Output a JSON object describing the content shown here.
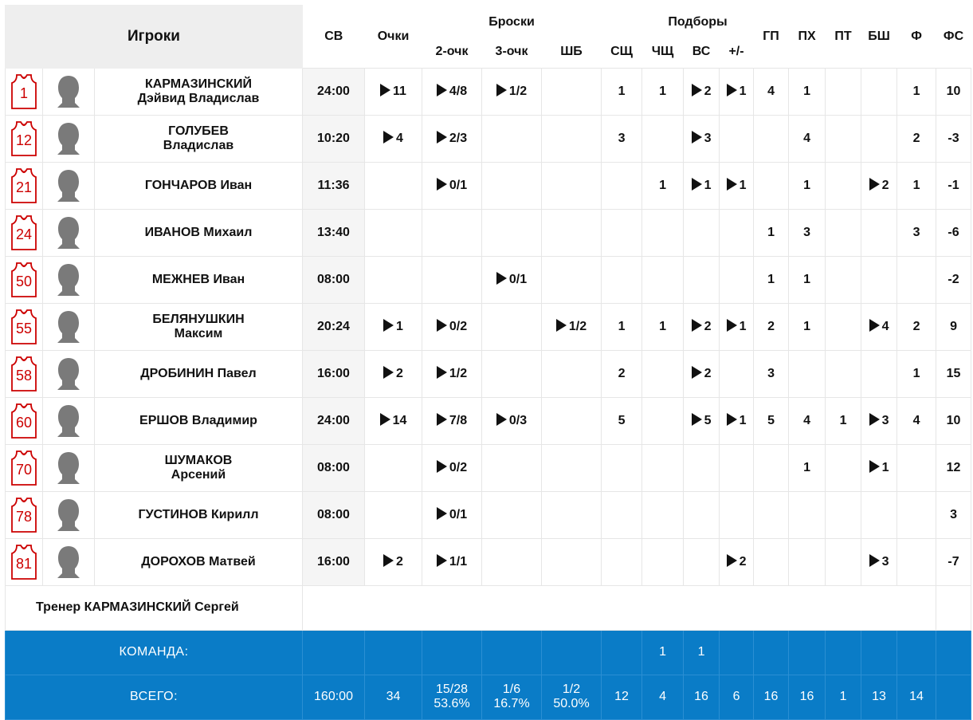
{
  "header": {
    "players": "Игроки",
    "sv": "СВ",
    "points": "Очки",
    "shots_group": "Броски",
    "two": "2-очк",
    "three": "3-очк",
    "ft": "ШБ",
    "reb_group": "Подборы",
    "oreb": "СЩ",
    "dreb": "ЧЩ",
    "treb": "ВС",
    "ast": "ГП",
    "stl": "ПХ",
    "tov": "ПТ",
    "blk": "БШ",
    "pf": "Ф",
    "fd": "ФС",
    "pm": "+/-"
  },
  "players": [
    {
      "number": "1",
      "name1": "КАРМАЗИНСКИЙ",
      "name2": "Дэйвид Владислав",
      "two_line": true,
      "sv": "24:00",
      "pts": "11",
      "two": "4/8",
      "three": "1/2",
      "ft": "",
      "oreb": "1",
      "dreb": "1",
      "treb": "2",
      "ast": "1",
      "stl": "4",
      "tov": "1",
      "blk": "",
      "pf": "",
      "fd": "1",
      "pm": "10"
    },
    {
      "number": "12",
      "name1": "ГОЛУБЕВ",
      "name2": "Владислав",
      "two_line": true,
      "sv": "10:20",
      "pts": "4",
      "two": "2/3",
      "three": "",
      "ft": "",
      "oreb": "3",
      "dreb": "",
      "treb": "3",
      "ast": "",
      "stl": "",
      "tov": "4",
      "blk": "",
      "pf": "",
      "fd": "2",
      "pm": "-3"
    },
    {
      "number": "21",
      "name1": "ГОНЧАРОВ Иван",
      "name2": "",
      "two_line": false,
      "sv": "11:36",
      "pts": "",
      "two": "0/1",
      "three": "",
      "ft": "",
      "oreb": "",
      "dreb": "1",
      "treb": "1",
      "ast": "1",
      "stl": "",
      "tov": "1",
      "blk": "",
      "pf": "2",
      "fd": "1",
      "pm": "-1"
    },
    {
      "number": "24",
      "name1": "ИВАНОВ Михаил",
      "name2": "",
      "two_line": false,
      "sv": "13:40",
      "pts": "",
      "two": "",
      "three": "",
      "ft": "",
      "oreb": "",
      "dreb": "",
      "treb": "",
      "ast": "",
      "stl": "1",
      "tov": "3",
      "blk": "",
      "pf": "",
      "fd": "3",
      "pm": "-6"
    },
    {
      "number": "50",
      "name1": "МЕЖНЕВ Иван",
      "name2": "",
      "two_line": false,
      "sv": "08:00",
      "pts": "",
      "two": "",
      "three": "0/1",
      "ft": "",
      "oreb": "",
      "dreb": "",
      "treb": "",
      "ast": "",
      "stl": "1",
      "tov": "1",
      "blk": "",
      "pf": "",
      "fd": "",
      "pm": "-2"
    },
    {
      "number": "55",
      "name1": "БЕЛЯНУШКИН",
      "name2": "Максим",
      "two_line": true,
      "sv": "20:24",
      "pts": "1",
      "two": "0/2",
      "three": "",
      "ft": "1/2",
      "oreb": "1",
      "dreb": "1",
      "treb": "2",
      "ast": "1",
      "stl": "2",
      "tov": "1",
      "blk": "",
      "pf": "4",
      "fd": "2",
      "pm": "9"
    },
    {
      "number": "58",
      "name1": "ДРОБИНИН Павел",
      "name2": "",
      "two_line": false,
      "sv": "16:00",
      "pts": "2",
      "two": "1/2",
      "three": "",
      "ft": "",
      "oreb": "2",
      "dreb": "",
      "treb": "2",
      "ast": "",
      "stl": "3",
      "tov": "",
      "blk": "",
      "pf": "",
      "fd": "1",
      "pm": "15"
    },
    {
      "number": "60",
      "name1": "ЕРШОВ Владимир",
      "name2": "",
      "two_line": false,
      "sv": "24:00",
      "pts": "14",
      "two": "7/8",
      "three": "0/3",
      "ft": "",
      "oreb": "5",
      "dreb": "",
      "treb": "5",
      "ast": "1",
      "stl": "5",
      "tov": "4",
      "blk": "1",
      "pf": "3",
      "fd": "4",
      "pm": "10"
    },
    {
      "number": "70",
      "name1": "ШУМАКОВ",
      "name2": "Арсений",
      "two_line": true,
      "sv": "08:00",
      "pts": "",
      "two": "0/2",
      "three": "",
      "ft": "",
      "oreb": "",
      "dreb": "",
      "treb": "",
      "ast": "",
      "stl": "",
      "tov": "1",
      "blk": "",
      "pf": "1",
      "fd": "",
      "pm": "12"
    },
    {
      "number": "78",
      "name1": "ГУСТИНОВ Кирилл",
      "name2": "",
      "two_line": false,
      "sv": "08:00",
      "pts": "",
      "two": "0/1",
      "three": "",
      "ft": "",
      "oreb": "",
      "dreb": "",
      "treb": "",
      "ast": "",
      "stl": "",
      "tov": "",
      "blk": "",
      "pf": "",
      "fd": "",
      "pm": "3"
    },
    {
      "number": "81",
      "name1": "ДОРОХОВ Матвей",
      "name2": "",
      "two_line": false,
      "sv": "16:00",
      "pts": "2",
      "two": "1/1",
      "three": "",
      "ft": "",
      "oreb": "",
      "dreb": "",
      "treb": "",
      "ast": "2",
      "stl": "",
      "tov": "",
      "blk": "",
      "pf": "3",
      "fd": "",
      "pm": "-7"
    }
  ],
  "coach": "Тренер КАРМАЗИНСКИЙ Сергей",
  "team": {
    "label": "КОМАНДА:",
    "dreb": "1",
    "treb": "1"
  },
  "total": {
    "label": "ВСЕГО:",
    "sv": "160:00",
    "pts": "34",
    "two": "15/28",
    "two_pct": "53.6%",
    "three": "1/6",
    "three_pct": "16.7%",
    "ft": "1/2",
    "ft_pct": "50.0%",
    "oreb": "12",
    "dreb": "4",
    "treb": "16",
    "ast": "6",
    "stl": "16",
    "tov": "16",
    "blk": "1",
    "pf": "13",
    "fd": "14",
    "pm": ""
  },
  "colors": {
    "accent": "#0a7cc7",
    "jersey": "#cc0000",
    "header_bg": "#eeeeee"
  },
  "icons": {
    "jersey": "jersey-icon",
    "avatar": "player-avatar-icon",
    "play": "play-triangle-icon"
  }
}
